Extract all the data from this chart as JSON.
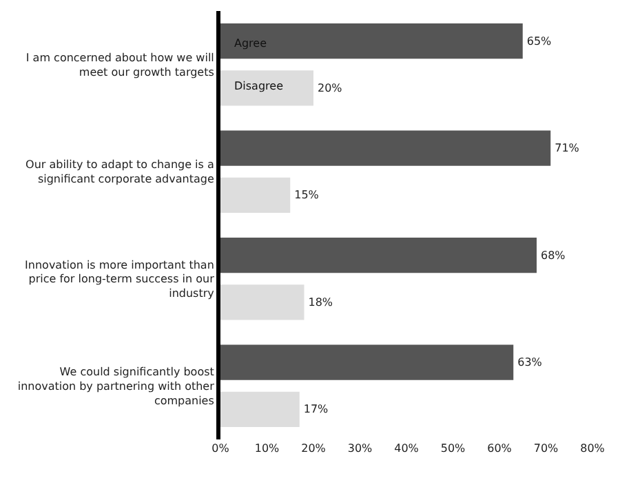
{
  "chart_data": {
    "type": "bar",
    "orientation": "horizontal",
    "categories": [
      "I am concerned about how we will meet our growth targets",
      "Our ability to adapt to change is a significant corporate advantage",
      "Innovation is more important than price for long-term success in our industry",
      "We could significantly boost innovation by partnering with other companies"
    ],
    "series": [
      {
        "name": "Agree",
        "color": "#555555",
        "values": [
          65,
          71,
          68,
          63
        ],
        "value_labels": [
          "65%",
          "71%",
          "68%",
          "63%"
        ]
      },
      {
        "name": "Disagree",
        "color": "#dddddd",
        "values": [
          20,
          15,
          18,
          17
        ],
        "value_labels": [
          "20%",
          "15%",
          "18%",
          "17%"
        ]
      }
    ],
    "xlim": [
      0,
      80
    ],
    "xticks": [
      {
        "value": 0,
        "label": "0%"
      },
      {
        "value": 10,
        "label": "10%"
      },
      {
        "value": 20,
        "label": "20%"
      },
      {
        "value": 30,
        "label": "30%"
      },
      {
        "value": 40,
        "label": "40%"
      },
      {
        "value": 50,
        "label": "50%"
      },
      {
        "value": 60,
        "label": "60%"
      },
      {
        "value": 70,
        "label": "70%"
      },
      {
        "value": 80,
        "label": "80%"
      }
    ],
    "grid": false,
    "legend": false
  }
}
